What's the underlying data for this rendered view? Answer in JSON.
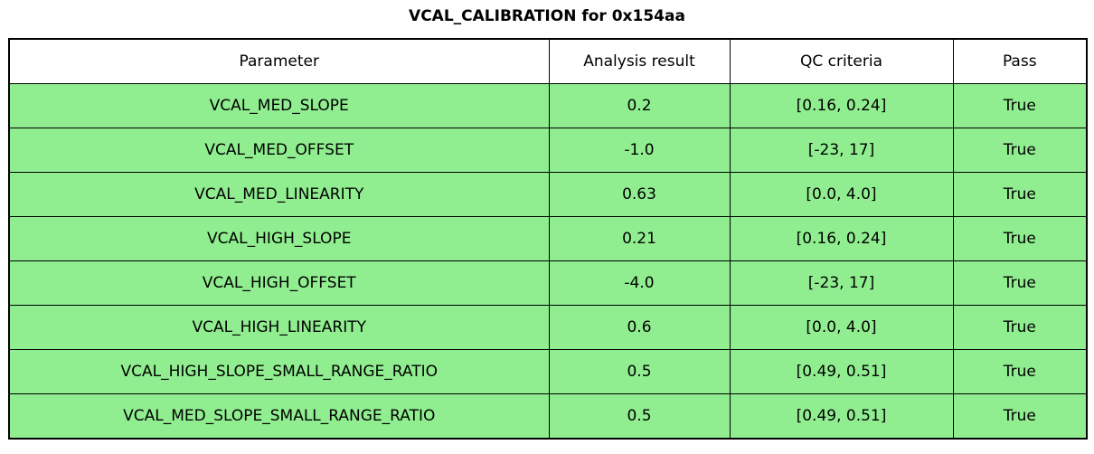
{
  "title": "VCAL_CALIBRATION for 0x154aa",
  "chart_data": {
    "type": "table",
    "title": "VCAL_CALIBRATION for 0x154aa",
    "columns": [
      "Parameter",
      "Analysis result",
      "QC criteria",
      "Pass"
    ],
    "rows": [
      [
        "VCAL_MED_SLOPE",
        "0.2",
        "[0.16, 0.24]",
        "True"
      ],
      [
        "VCAL_MED_OFFSET",
        "-1.0",
        "[-23, 17]",
        "True"
      ],
      [
        "VCAL_MED_LINEARITY",
        "0.63",
        "[0.0, 4.0]",
        "True"
      ],
      [
        "VCAL_HIGH_SLOPE",
        "0.21",
        "[0.16, 0.24]",
        "True"
      ],
      [
        "VCAL_HIGH_OFFSET",
        "-4.0",
        "[-23, 17]",
        "True"
      ],
      [
        "VCAL_HIGH_LINEARITY",
        "0.6",
        "[0.0, 4.0]",
        "True"
      ],
      [
        "VCAL_HIGH_SLOPE_SMALL_RANGE_RATIO",
        "0.5",
        "[0.49, 0.51]",
        "True"
      ],
      [
        "VCAL_MED_SLOPE_SMALL_RANGE_RATIO",
        "0.5",
        "[0.49, 0.51]",
        "True"
      ]
    ],
    "legend": "none",
    "grid": "cell-borders"
  },
  "colors": {
    "pass_green": "#90EE90",
    "header_bg": "#FFFFFF",
    "border": "#000000",
    "text": "#000000",
    "background": "#FFFFFF"
  }
}
